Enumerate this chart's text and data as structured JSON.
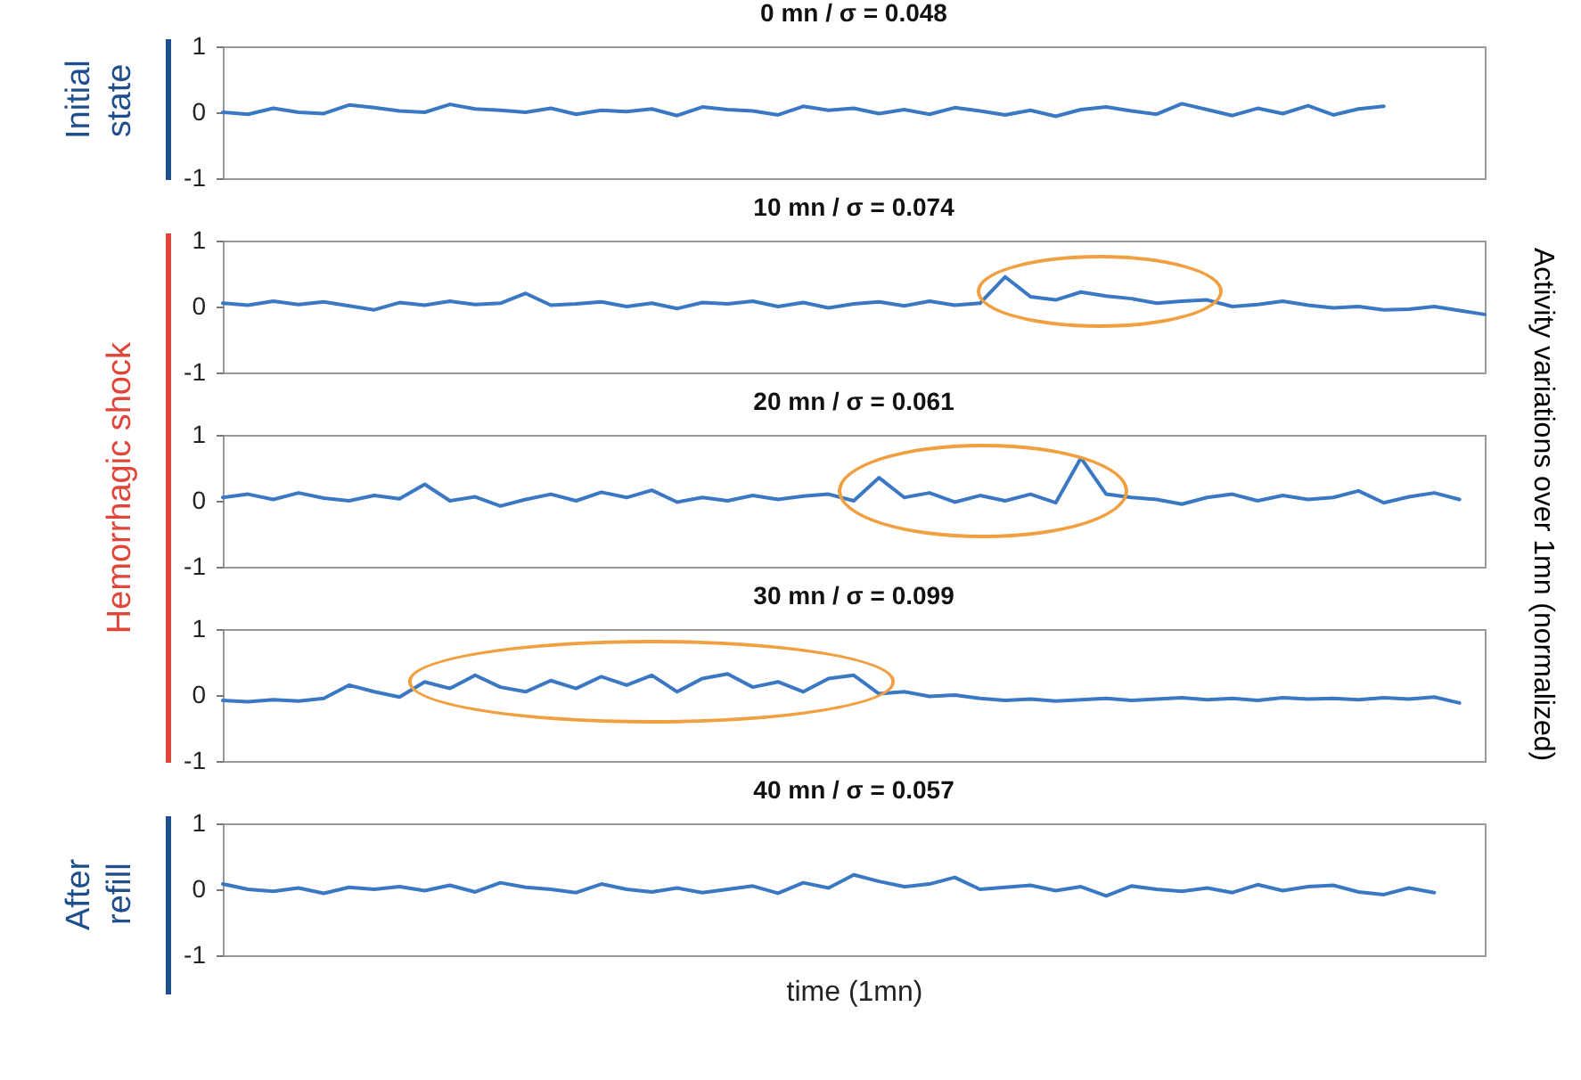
{
  "chart_data": [
    {
      "type": "line",
      "title": "0 mn / σ = 0.048",
      "annotations": [
        "Initial state"
      ],
      "ylim": [
        -1,
        1
      ],
      "yticks": [
        -1,
        0,
        1
      ],
      "tick_labels": "y",
      "categories": [
        null,
        null,
        null,
        null,
        null,
        null,
        null,
        null,
        null,
        null,
        null,
        null,
        null,
        null,
        null,
        null,
        null,
        null,
        null,
        null,
        null,
        null,
        null,
        null,
        null,
        null,
        null,
        null,
        null,
        null,
        null,
        null,
        null,
        null,
        null,
        null,
        null,
        null,
        null,
        null,
        null,
        null,
        null,
        null,
        null,
        null,
        null,
        null,
        null,
        null,
        null
      ],
      "series": [
        {
          "color": "#3b78c4",
          "values": [
            0,
            -0.03,
            0.06,
            0.0,
            -0.02,
            0.11,
            0.07,
            0.02,
            0.0,
            0.12,
            0.05,
            0.03,
            0.0,
            0.06,
            -0.03,
            0.03,
            0.01,
            0.05,
            -0.05,
            0.08,
            0.04,
            0.02,
            -0.04,
            0.09,
            0.03,
            0.06,
            -0.02,
            0.04,
            -0.03,
            0.07,
            0.02,
            -0.04,
            0.03,
            -0.06,
            0.04,
            0.08,
            0.02,
            -0.03,
            0.13,
            0.04,
            -0.05,
            0.06,
            -0.02,
            0.1,
            -0.04,
            0.05,
            0.09,
            null,
            null,
            null,
            null
          ]
        }
      ]
    },
    {
      "type": "line",
      "title": "10 mn / σ = 0.074",
      "annotations": [
        "Hemorrhagic shock"
      ],
      "ylim": [
        -1,
        1
      ],
      "yticks": [
        -1,
        0,
        1
      ],
      "tick_labels": "y",
      "categories": [
        null,
        null,
        null,
        null,
        null,
        null,
        null,
        null,
        null,
        null,
        null,
        null,
        null,
        null,
        null,
        null,
        null,
        null,
        null,
        null,
        null,
        null,
        null,
        null,
        null,
        null,
        null,
        null,
        null,
        null,
        null,
        null,
        null,
        null,
        null,
        null,
        null,
        null,
        null,
        null,
        null,
        null,
        null,
        null,
        null,
        null,
        null,
        null,
        null,
        null,
        null
      ],
      "series": [
        {
          "color": "#3b78c4",
          "values": [
            0.05,
            0.02,
            0.08,
            0.03,
            0.07,
            0.01,
            -0.05,
            0.06,
            0.02,
            0.08,
            0.03,
            0.05,
            0.2,
            0.02,
            0.04,
            0.07,
            0.0,
            0.05,
            -0.03,
            0.06,
            0.04,
            0.08,
            0.0,
            0.06,
            -0.02,
            0.04,
            0.07,
            0.01,
            0.08,
            0.02,
            0.05,
            0.45,
            0.15,
            0.1,
            0.22,
            0.16,
            0.12,
            0.05,
            0.08,
            0.1,
            0.0,
            0.03,
            0.08,
            0.02,
            -0.02,
            0.0,
            -0.05,
            -0.04,
            0.0,
            -0.06,
            -0.12
          ]
        }
      ]
    },
    {
      "type": "line",
      "title": "20 mn / σ = 0.061",
      "ylabel": "Activity variations over 1mn (normalized)",
      "ylim": [
        -1,
        1
      ],
      "yticks": [
        -1,
        0,
        1
      ],
      "tick_labels": "y",
      "categories": [
        null,
        null,
        null,
        null,
        null,
        null,
        null,
        null,
        null,
        null,
        null,
        null,
        null,
        null,
        null,
        null,
        null,
        null,
        null,
        null,
        null,
        null,
        null,
        null,
        null,
        null,
        null,
        null,
        null,
        null,
        null,
        null,
        null,
        null,
        null,
        null,
        null,
        null,
        null,
        null,
        null,
        null,
        null,
        null,
        null,
        null,
        null,
        null,
        null,
        null,
        null
      ],
      "series": [
        {
          "color": "#3b78c4",
          "values": [
            0.05,
            0.1,
            0.02,
            0.12,
            0.04,
            0.0,
            0.08,
            0.03,
            0.25,
            0.0,
            0.06,
            -0.08,
            0.02,
            0.1,
            0.0,
            0.13,
            0.05,
            0.16,
            -0.02,
            0.05,
            0.0,
            0.08,
            0.02,
            0.07,
            0.1,
            0.0,
            0.35,
            0.05,
            0.12,
            -0.02,
            0.08,
            0.0,
            0.1,
            -0.03,
            0.65,
            0.1,
            0.05,
            0.02,
            -0.05,
            0.05,
            0.1,
            0.0,
            0.08,
            0.02,
            0.05,
            0.15,
            -0.03,
            0.06,
            0.12,
            0.02,
            null
          ]
        }
      ]
    },
    {
      "type": "line",
      "title": "30 mn / σ = 0.099",
      "ylim": [
        -1,
        1
      ],
      "yticks": [
        -1,
        0,
        1
      ],
      "tick_labels": "y",
      "categories": [
        null,
        null,
        null,
        null,
        null,
        null,
        null,
        null,
        null,
        null,
        null,
        null,
        null,
        null,
        null,
        null,
        null,
        null,
        null,
        null,
        null,
        null,
        null,
        null,
        null,
        null,
        null,
        null,
        null,
        null,
        null,
        null,
        null,
        null,
        null,
        null,
        null,
        null,
        null,
        null,
        null,
        null,
        null,
        null,
        null,
        null,
        null,
        null,
        null,
        null,
        null
      ],
      "series": [
        {
          "color": "#3b78c4",
          "values": [
            -0.08,
            -0.1,
            -0.07,
            -0.09,
            -0.05,
            0.15,
            0.05,
            -0.03,
            0.2,
            0.1,
            0.3,
            0.12,
            0.05,
            0.22,
            0.1,
            0.28,
            0.15,
            0.3,
            0.05,
            0.25,
            0.32,
            0.12,
            0.2,
            0.05,
            0.25,
            0.3,
            0.02,
            0.05,
            -0.02,
            0.0,
            -0.05,
            -0.08,
            -0.06,
            -0.09,
            -0.07,
            -0.05,
            -0.08,
            -0.06,
            -0.04,
            -0.07,
            -0.05,
            -0.08,
            -0.04,
            -0.06,
            -0.05,
            -0.07,
            -0.04,
            -0.06,
            -0.03,
            -0.12,
            null
          ]
        }
      ]
    },
    {
      "type": "line",
      "title": "40 mn / σ = 0.057",
      "annotations": [
        "After refill"
      ],
      "xlabel": "time (1mn)",
      "ylim": [
        -1,
        1
      ],
      "yticks": [
        -1,
        0,
        1
      ],
      "tick_labels": "y",
      "categories": [
        null,
        null,
        null,
        null,
        null,
        null,
        null,
        null,
        null,
        null,
        null,
        null,
        null,
        null,
        null,
        null,
        null,
        null,
        null,
        null,
        null,
        null,
        null,
        null,
        null,
        null,
        null,
        null,
        null,
        null,
        null,
        null,
        null,
        null,
        null,
        null,
        null,
        null,
        null,
        null,
        null,
        null,
        null,
        null,
        null,
        null,
        null,
        null,
        null,
        null,
        null
      ],
      "series": [
        {
          "color": "#3b78c4",
          "values": [
            0.08,
            0.0,
            -0.03,
            0.02,
            -0.06,
            0.03,
            0.0,
            0.04,
            -0.02,
            0.06,
            -0.04,
            0.1,
            0.03,
            0.0,
            -0.05,
            0.08,
            0.0,
            -0.04,
            0.02,
            -0.05,
            0.0,
            0.05,
            -0.06,
            0.1,
            0.02,
            0.22,
            0.12,
            0.04,
            0.08,
            0.18,
            0.0,
            0.03,
            0.06,
            -0.02,
            0.04,
            -0.1,
            0.05,
            0.0,
            -0.03,
            0.02,
            -0.05,
            0.07,
            -0.02,
            0.04,
            0.06,
            -0.04,
            -0.08,
            0.02,
            -0.05,
            null,
            null
          ]
        }
      ]
    }
  ]
}
